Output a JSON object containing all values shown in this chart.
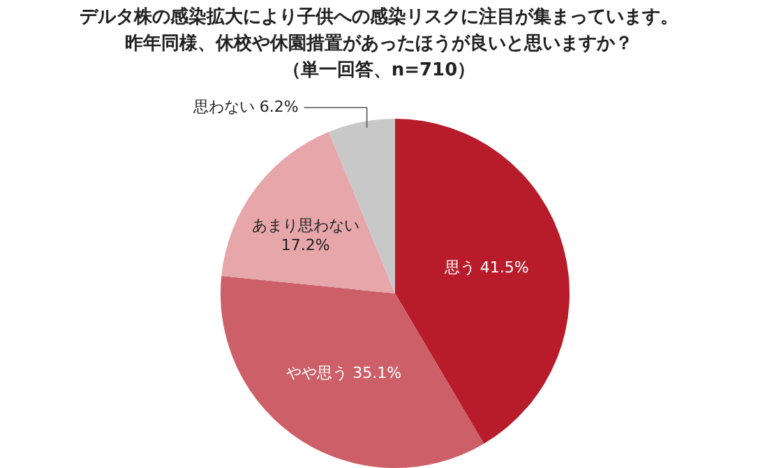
{
  "chart_data": {
    "type": "pie",
    "title": "デルタ株の感染拡大により子供への感染リスクに注目が集まっています。昨年同様、休校や休園措置があったほうが良いと思いますか？",
    "subtitle": "（単一回答、n=710）",
    "categories": [
      "思う",
      "やや思う",
      "あまり思わない",
      "思わない"
    ],
    "values": [
      41.5,
      35.1,
      17.2,
      6.2
    ],
    "colors": [
      "#b81c2b",
      "#cc5f68",
      "#e6a6aa",
      "#c8c8c8"
    ],
    "value_labels": [
      "41.5%",
      "35.1%",
      "17.2%",
      "6.2%"
    ]
  }
}
